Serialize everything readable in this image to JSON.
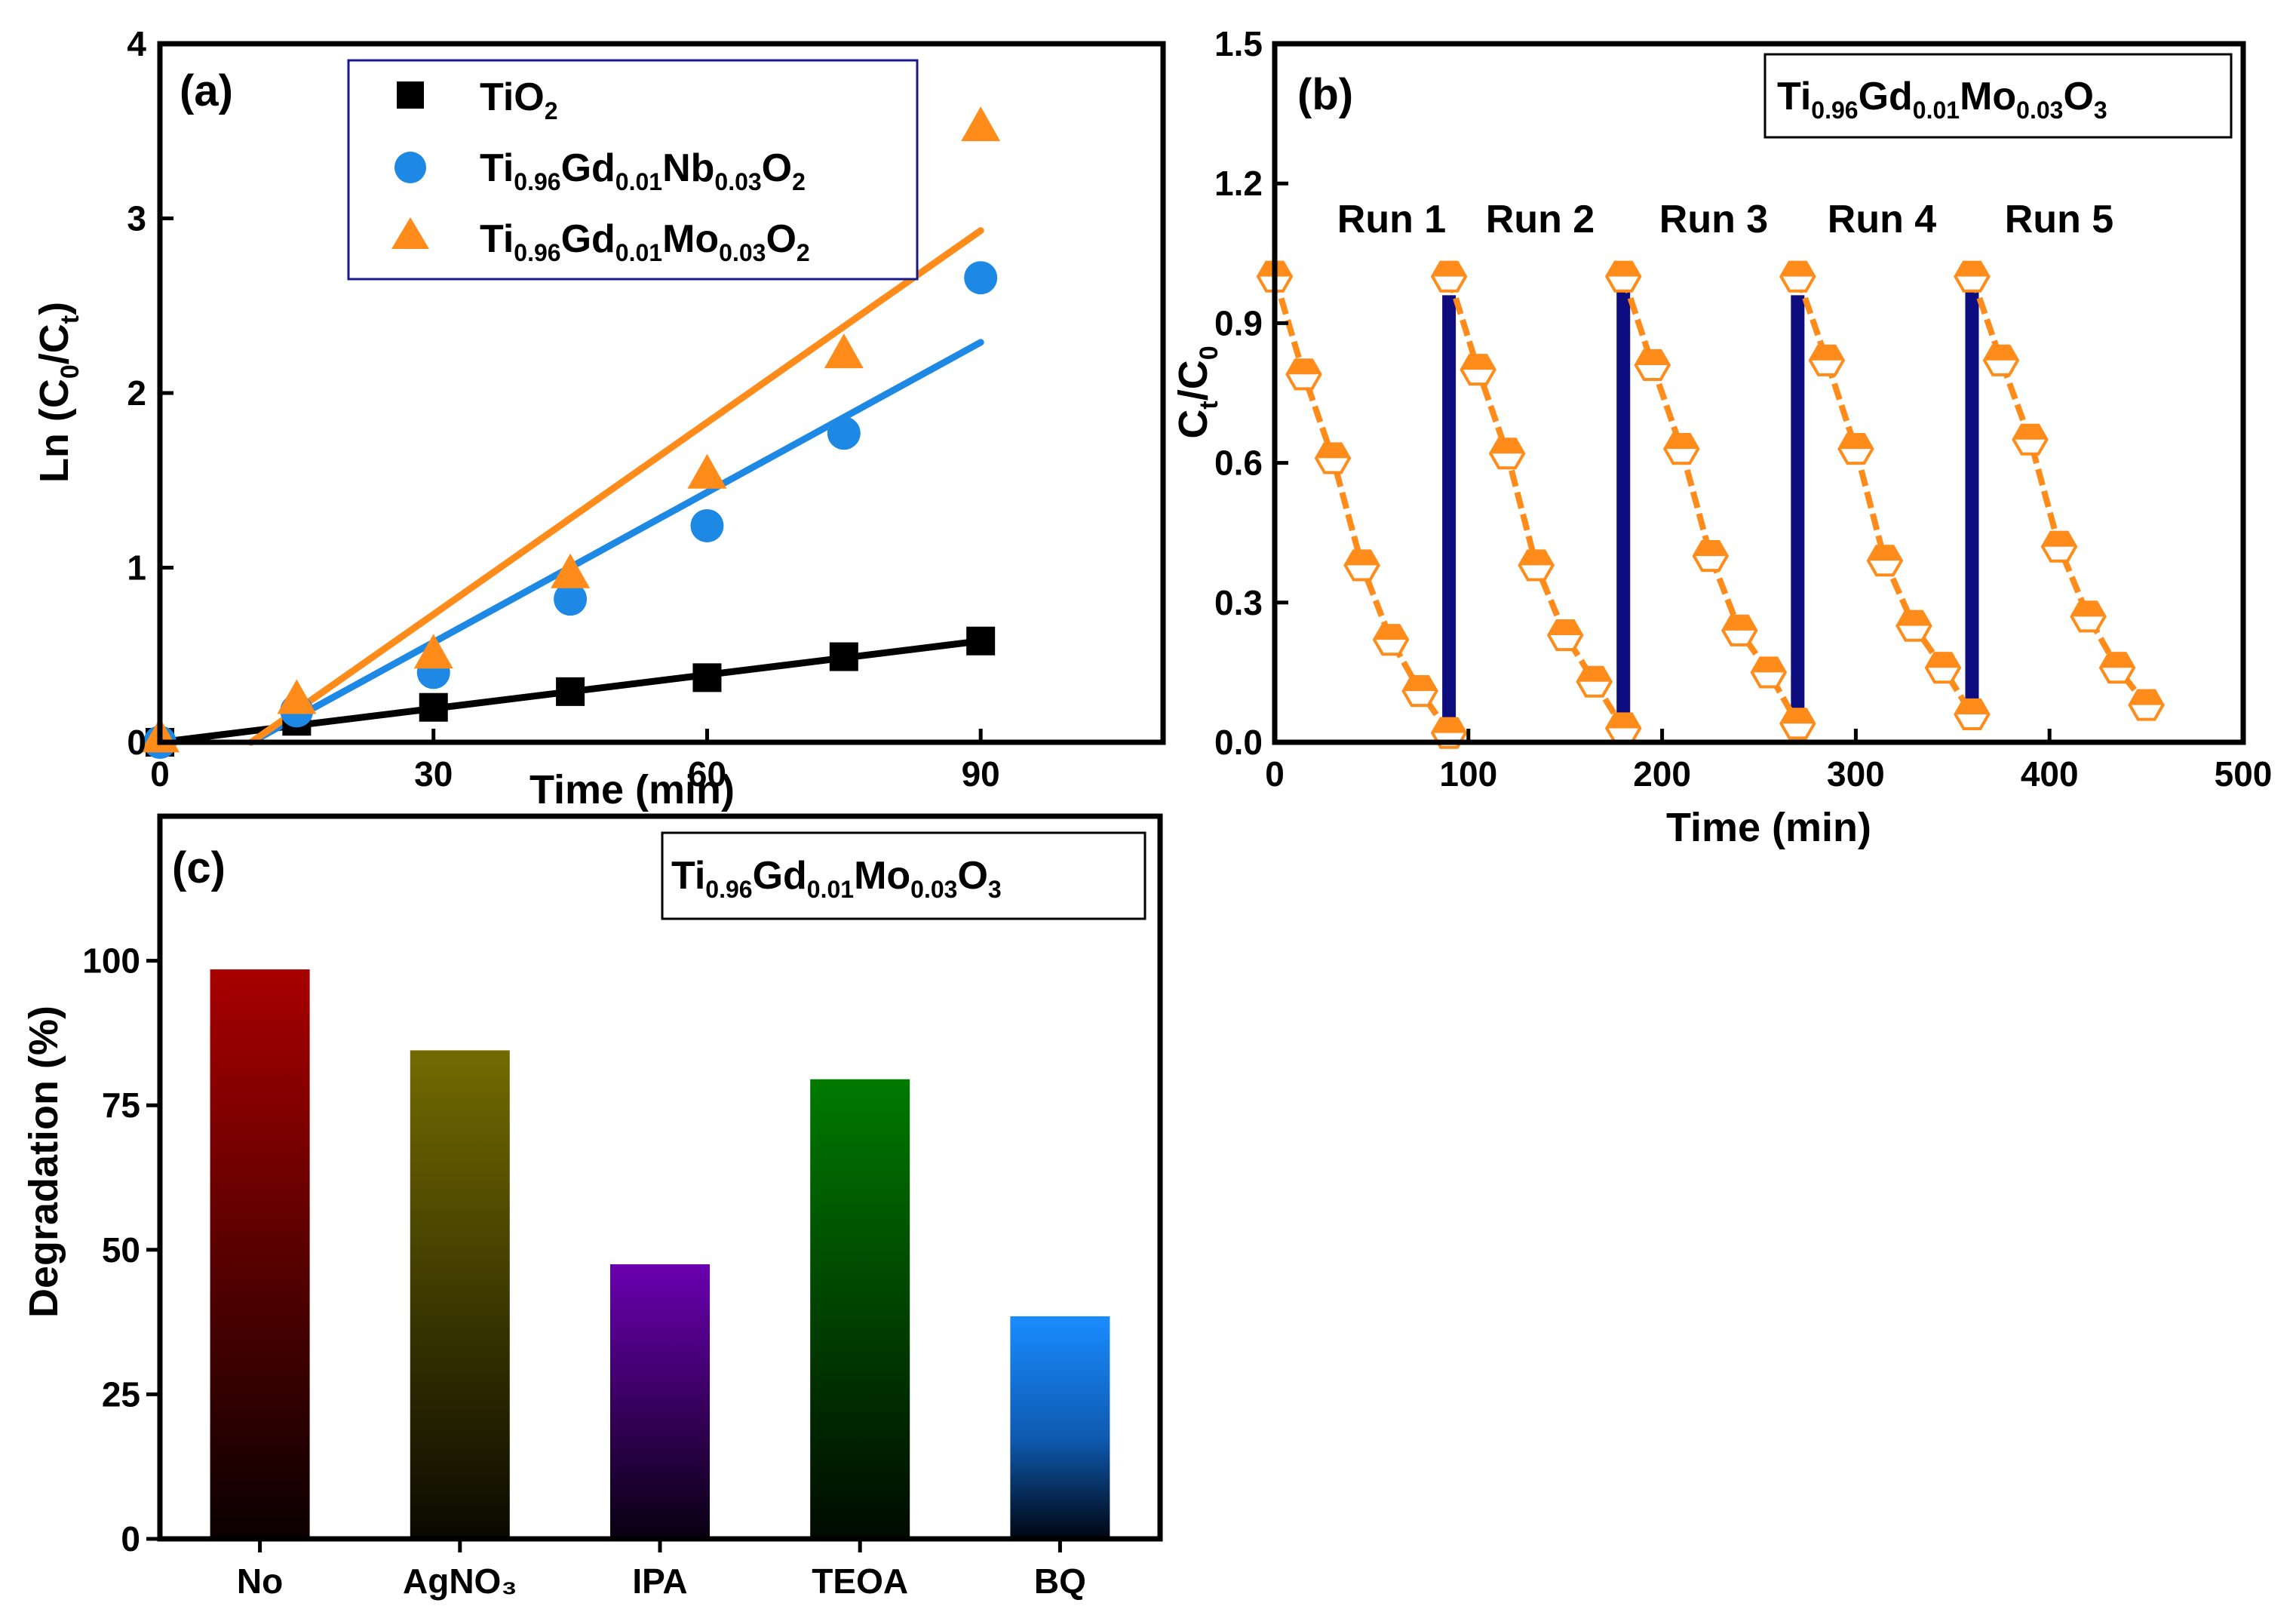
{
  "chart_data": [
    {
      "panel": "(a)",
      "type": "scatter",
      "xlabel": "Time (min)",
      "ylabel": {
        "text": "Ln (C",
        "sub1": "0",
        "mid": "/C",
        "sub2": "t",
        "end": ")"
      },
      "xlim": [
        0,
        110
      ],
      "ylim": [
        0,
        4
      ],
      "xticks": [
        "0",
        "30",
        "60",
        "90"
      ],
      "yticks": [
        "0",
        "1",
        "2",
        "3",
        "4"
      ],
      "legend_position": "top-center",
      "series": [
        {
          "name": {
            "parts": [
              [
                "Ti",
                ""
              ],
              [
                "O",
                ""
              ],
              [
                "",
                "2"
              ]
            ],
            "plain": "TiO2"
          },
          "legend": {
            "b1": "TiO",
            "s1": "2"
          },
          "marker": "square",
          "color": "#000000",
          "x": [
            0,
            15,
            30,
            45,
            60,
            75,
            90
          ],
          "y": [
            0,
            0.12,
            0.2,
            0.29,
            0.37,
            0.49,
            0.58
          ],
          "fit": {
            "x": [
              0,
              90
            ],
            "y": [
              0,
              0.58
            ]
          }
        },
        {
          "legend": {
            "b1": "Ti",
            "s1": "0.96",
            "b2": "Gd",
            "s2": "0.01",
            "b3": "Nb",
            "s3": "0.03",
            "b4": "O",
            "s4": "2"
          },
          "marker": "circle",
          "color": "#1e88e5",
          "x": [
            0,
            15,
            30,
            45,
            60,
            75,
            90
          ],
          "y": [
            0,
            0.18,
            0.4,
            0.82,
            1.24,
            1.77,
            2.66
          ],
          "fit": {
            "x": [
              10,
              90
            ],
            "y": [
              0,
              2.29
            ]
          }
        },
        {
          "legend": {
            "b1": "Ti",
            "s1": "0.96",
            "b2": "Gd",
            "s2": "0.01",
            "b3": "Mo",
            "s3": "0.03",
            "b4": "O",
            "s4": "2"
          },
          "marker": "triangle",
          "color": "#ff8c1a",
          "x": [
            0,
            15,
            30,
            45,
            60,
            75,
            90
          ],
          "y": [
            0.02,
            0.24,
            0.5,
            0.96,
            1.53,
            2.22,
            3.52
          ],
          "fit": {
            "x": [
              10,
              90
            ],
            "y": [
              0,
              2.93
            ]
          }
        }
      ]
    },
    {
      "panel": "(b)",
      "type": "line",
      "xlabel": "Time (min)",
      "ylabel": {
        "b1": "C",
        "s1": "t",
        "b2": "/C",
        "s2": "0"
      },
      "xlim": [
        0,
        500
      ],
      "ylim": [
        0,
        1.5
      ],
      "xticks": [
        "0",
        "100",
        "200",
        "300",
        "400",
        "500"
      ],
      "yticks": [
        "0.0",
        "0.3",
        "0.6",
        "0.9",
        "1.2",
        "1.5"
      ],
      "annotation": {
        "b1": "Ti",
        "s1": "0.96",
        "b2": "Gd",
        "s2": "0.01",
        "b3": "Mo",
        "s3": "0.03",
        "b4": "O",
        "s4": "3"
      },
      "run_labels": [
        "Run 1",
        "Run 2",
        "Run 3",
        "Run 4",
        "Run 5"
      ],
      "runs": [
        {
          "x": [
            0,
            15,
            30,
            45,
            60,
            75,
            90
          ],
          "y": [
            1.0,
            0.79,
            0.61,
            0.38,
            0.22,
            0.11,
            0.02
          ]
        },
        {
          "x": [
            90,
            105,
            120,
            135,
            150,
            165,
            180
          ],
          "y": [
            1.0,
            0.8,
            0.62,
            0.38,
            0.23,
            0.13,
            0.03
          ]
        },
        {
          "x": [
            180,
            195,
            210,
            225,
            240,
            255,
            270
          ],
          "y": [
            1.0,
            0.81,
            0.63,
            0.4,
            0.24,
            0.15,
            0.04
          ]
        },
        {
          "x": [
            270,
            285,
            300,
            315,
            330,
            345,
            360
          ],
          "y": [
            1.0,
            0.82,
            0.63,
            0.39,
            0.25,
            0.16,
            0.06
          ]
        },
        {
          "x": [
            360,
            375,
            390,
            405,
            420,
            435,
            450
          ],
          "y": [
            1.0,
            0.82,
            0.65,
            0.42,
            0.27,
            0.16,
            0.08
          ]
        }
      ],
      "separators": [
        {
          "x": 90,
          "y": [
            0.05,
            0.96
          ]
        },
        {
          "x": 180,
          "y": [
            0.05,
            0.97
          ]
        },
        {
          "x": 270,
          "y": [
            0.05,
            0.96
          ]
        },
        {
          "x": 360,
          "y": [
            0.07,
            0.97
          ]
        }
      ],
      "line_color": "#ff8c1a",
      "separator_color": "#0d0d80"
    },
    {
      "panel": "(c)",
      "type": "bar",
      "xlabel": "",
      "ylabel": "Degradation (%)",
      "ylim": [
        0,
        125
      ],
      "yticks": [
        "0",
        "25",
        "50",
        "75",
        "100"
      ],
      "categories": [
        "No",
        "AgNO₃",
        "IPA",
        "TEOA",
        "BQ"
      ],
      "values": [
        98.5,
        84.5,
        47.5,
        79.5,
        38.5
      ],
      "bar_colors": [
        "#a80000",
        "#736b00",
        "#6a00b0",
        "#007a00",
        "#1a8cff"
      ],
      "annotation": {
        "b1": "Ti",
        "s1": "0.96",
        "b2": "Gd",
        "s2": "0.01",
        "b3": "Mo",
        "s3": "0.03",
        "b4": "O",
        "s4": "3"
      }
    }
  ]
}
